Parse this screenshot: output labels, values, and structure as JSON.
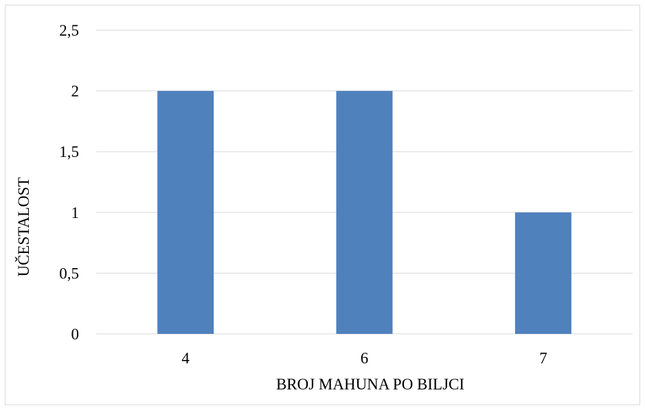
{
  "chart_data": {
    "type": "bar",
    "categories": [
      "4",
      "6",
      "7"
    ],
    "values": [
      2,
      2,
      1
    ],
    "title": "",
    "xlabel": "BROJ MAHUNA PO BILJCI",
    "ylabel": "UČESTALOST",
    "ylim": [
      0,
      2.5
    ],
    "y_ticks": [
      0,
      0.5,
      1,
      1.5,
      2,
      2.5
    ],
    "y_tick_labels": [
      "0",
      "0,5",
      "1",
      "1,5",
      "2",
      "2,5"
    ],
    "grid": true,
    "legend": "none",
    "colors": {
      "bar": "#4f81bd",
      "grid": "#d9d9d9",
      "axis": "#d9d9d9",
      "frame": "#d9d9d9"
    }
  }
}
